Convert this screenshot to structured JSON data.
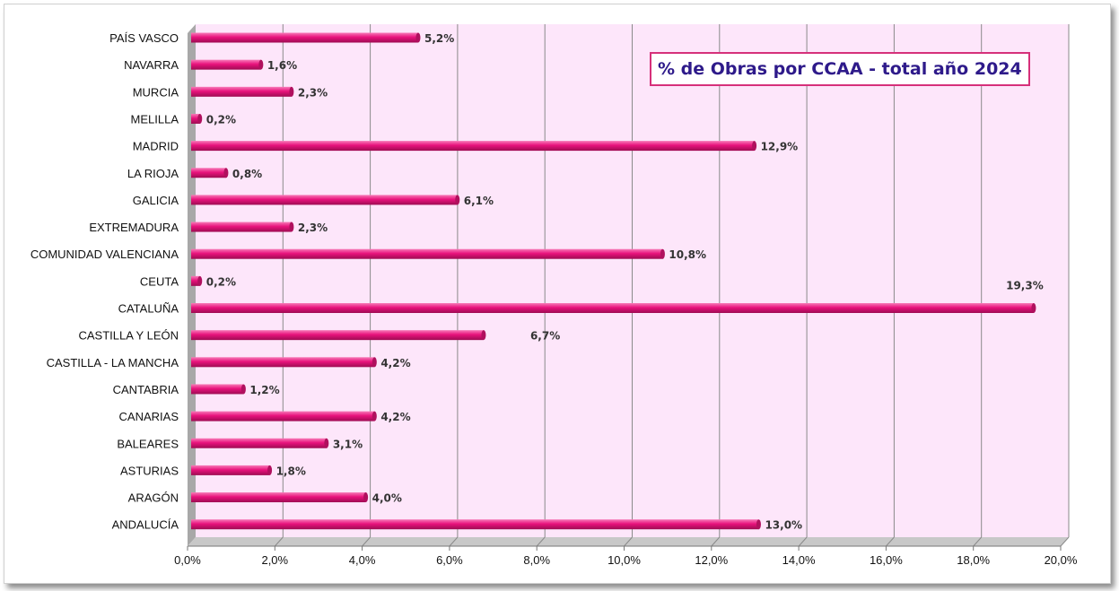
{
  "chart_data": {
    "type": "bar",
    "orientation": "horizontal",
    "title": "% de Obras por CCAA - total año 2024",
    "categories": [
      "ANDALUCÍA",
      "ARAGÓN",
      "ASTURIAS",
      "BALEARES",
      "CANARIAS",
      "CANTABRIA",
      "CASTILLA - LA MANCHA",
      "CASTILLA Y LEÓN",
      "CATALUÑA",
      "CEUTA",
      "COMUNIDAD VALENCIANA",
      "EXTREMADURA",
      "GALICIA",
      "LA RIOJA",
      "MADRID",
      "MELILLA",
      "MURCIA",
      "NAVARRA",
      "PAÍS VASCO"
    ],
    "values": [
      13.0,
      4.0,
      1.8,
      3.1,
      4.2,
      1.2,
      4.2,
      6.7,
      19.3,
      0.2,
      10.8,
      2.3,
      6.1,
      0.8,
      12.9,
      0.2,
      2.3,
      1.6,
      5.2
    ],
    "data_labels": [
      "13,0%",
      "4,0%",
      "1,8%",
      "3,1%",
      "4,2%",
      "1,2%",
      "4,2%",
      "6,7%",
      "19,3%",
      "0,2%",
      "10,8%",
      "2,3%",
      "6,1%",
      "0,8%",
      "12,9%",
      "0,2%",
      "2,3%",
      "1,6%",
      "5,2%"
    ],
    "x_ticks": [
      "0,0%",
      "2,0%",
      "4,0%",
      "6,0%",
      "8,0%",
      "10,0%",
      "12,0%",
      "14,0%",
      "16,0%",
      "18,0%",
      "20,0%"
    ],
    "xlim": [
      0,
      20
    ],
    "xlabel": "",
    "ylabel": "",
    "grid": true,
    "legend": "none",
    "colors": {
      "bar": "#e8127c",
      "bar_highlight": "#f77bb8",
      "bar_end": "#b0105e",
      "plot_background": "#fde6fa",
      "grid": "#8a8a8a",
      "title_border": "#d6307a",
      "title_text": "#2e1a8a"
    }
  }
}
